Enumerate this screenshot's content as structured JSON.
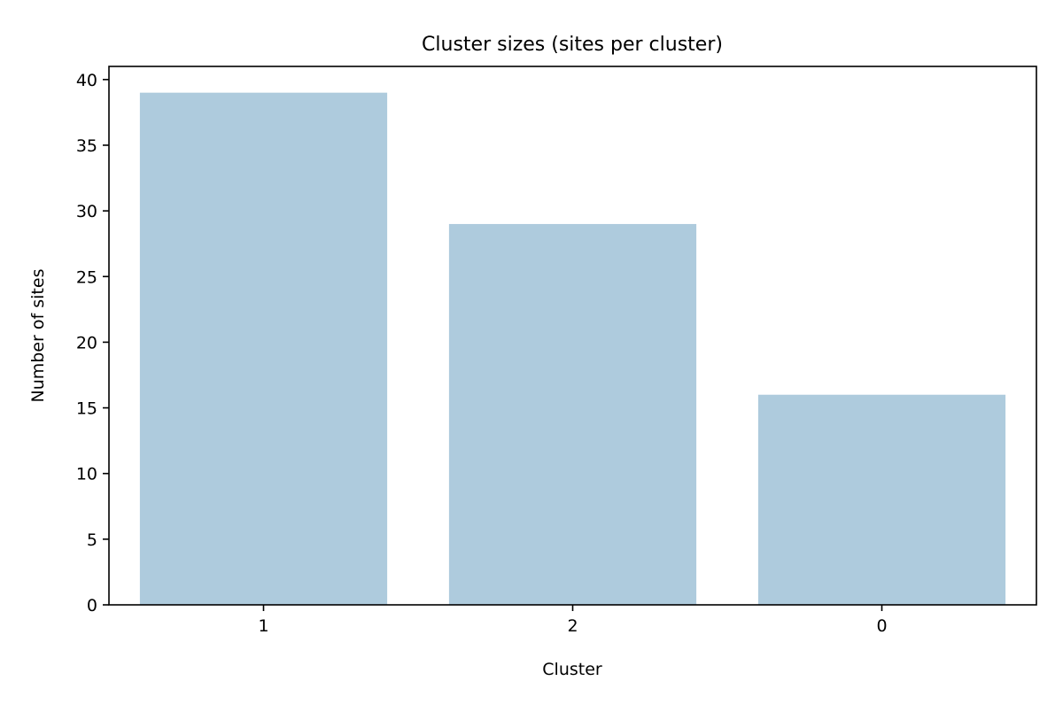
{
  "chart_data": {
    "type": "bar",
    "title": "Cluster sizes (sites per cluster)",
    "xlabel": "Cluster",
    "ylabel": "Number of sites",
    "categories": [
      "1",
      "2",
      "0"
    ],
    "values": [
      39,
      29,
      16
    ],
    "ylim": [
      0,
      41
    ],
    "yticks": [
      0,
      5,
      10,
      15,
      20,
      25,
      30,
      35,
      40
    ],
    "grid": false,
    "legend": "none",
    "bar_color": "#aecbdd"
  }
}
